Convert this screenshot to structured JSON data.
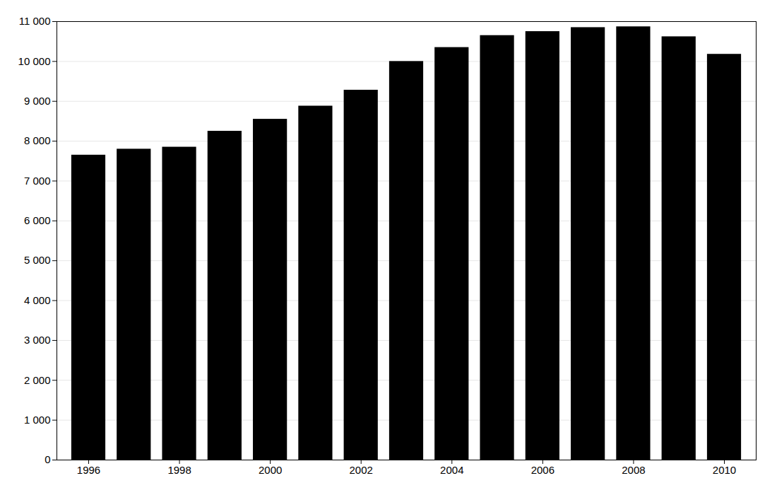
{
  "chart_data": {
    "type": "bar",
    "x": [
      1996,
      1997,
      1998,
      1999,
      2000,
      2001,
      2002,
      2003,
      2004,
      2005,
      2006,
      2007,
      2008,
      2009,
      2010
    ],
    "values": [
      7650,
      7800,
      7850,
      8250,
      8550,
      8880,
      9280,
      10000,
      10350,
      10650,
      10750,
      10850,
      10870,
      10620,
      10180
    ],
    "xlim": [
      1995.3,
      2010.7
    ],
    "xticks": [
      1996,
      1998,
      2000,
      2002,
      2004,
      2006,
      2008,
      2010
    ],
    "ylim": [
      0,
      11000
    ],
    "yticks": [
      0,
      {
        "value": 1000,
        "label": "1 000"
      },
      {
        "value": 2000,
        "label": "2 000"
      },
      {
        "value": 3000,
        "label": "3 000"
      },
      {
        "value": 4000,
        "label": "4 000"
      },
      {
        "value": 5000,
        "label": "5 000"
      },
      {
        "value": 6000,
        "label": "6 000"
      },
      {
        "value": 7000,
        "label": "7 000"
      },
      {
        "value": 8000,
        "label": "8 000"
      },
      {
        "value": 9000,
        "label": "9 000"
      },
      {
        "value": 10000,
        "label": "10 000"
      },
      {
        "value": 11000,
        "label": "11 000"
      }
    ],
    "grid": true
  }
}
